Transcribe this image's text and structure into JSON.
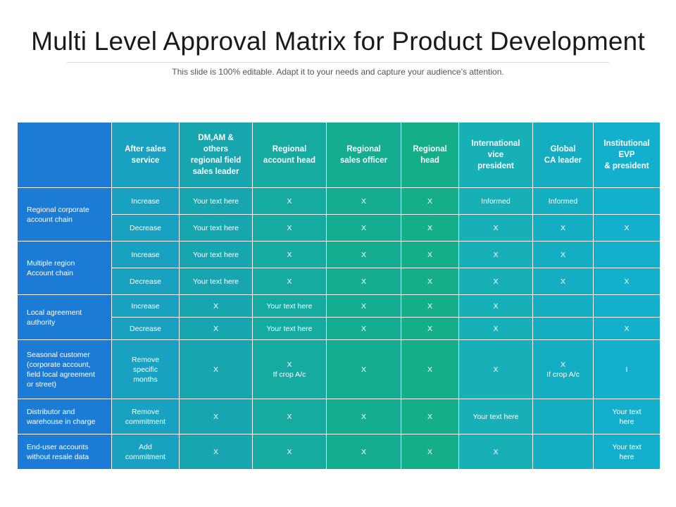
{
  "title": "Multi Level Approval Matrix for Product Development",
  "subtitle": "This slide is 100% editable. Adapt it to your needs and capture your audience’s attention.",
  "colors": {
    "header_row_label": "#1c7cd5",
    "col1": "#18a1c0",
    "col2": "#17a6b0",
    "col3": "#15aba1",
    "col4": "#14ad91",
    "col5": "#14af88",
    "col6": "#17b0b6",
    "col7": "#14aec3",
    "col8": "#12b0cd"
  },
  "table": {
    "corner": "",
    "columns": [
      [
        "After sales",
        "service"
      ],
      [
        "DM,AM &",
        "others",
        "regional field",
        "sales leader"
      ],
      [
        "Regional",
        "account head"
      ],
      [
        "Regional",
        "sales officer"
      ],
      [
        "Regional",
        "head"
      ],
      [
        "International",
        "vice",
        "president"
      ],
      [
        "Global",
        "CA leader"
      ],
      [
        "Institutional",
        "EVP",
        "& president"
      ]
    ],
    "groups": [
      {
        "label": [
          "Regional corporate",
          "account chain"
        ],
        "rows": [
          [
            "Increase",
            "Your text here",
            "X",
            "X",
            "X",
            "Informed",
            "Informed",
            ""
          ],
          [
            "Decrease",
            "Your text here",
            "X",
            "X",
            "X",
            "X",
            "X",
            "X"
          ]
        ]
      },
      {
        "label": [
          "Multiple region",
          "Account chain"
        ],
        "rows": [
          [
            "Increase",
            "Your text here",
            "X",
            "X",
            "X",
            "X",
            "X",
            ""
          ],
          [
            "Decrease",
            "Your text here",
            "X",
            "X",
            "X",
            "X",
            "X",
            "X"
          ]
        ]
      },
      {
        "label": [
          "Local agreement",
          "authority"
        ],
        "rows": [
          [
            "Increase",
            "X",
            "Your text here",
            "X",
            "X",
            "X",
            "",
            ""
          ],
          [
            "Decrease",
            "X",
            "Your text here",
            "X",
            "X",
            "X",
            "",
            "X"
          ]
        ]
      },
      {
        "label": [
          "Seasonal customer",
          "(corporate account,",
          "field local agreement",
          "or street)"
        ],
        "rows": [
          [
            [
              "Remove",
              "specific",
              "months"
            ],
            "X",
            [
              "X",
              "If crop A/c"
            ],
            "X",
            "X",
            "X",
            [
              "X",
              "If crop A/c"
            ],
            "I"
          ]
        ]
      },
      {
        "label": [
          "Distributor  and",
          "warehouse in charge"
        ],
        "rows": [
          [
            [
              "Remove",
              "commitment"
            ],
            "X",
            "X",
            "X",
            "X",
            "Your text here",
            "",
            [
              "Your text",
              "here"
            ]
          ]
        ]
      },
      {
        "label": [
          "End-user accounts",
          "without resale data"
        ],
        "rows": [
          [
            [
              "Add",
              "commitment"
            ],
            "X",
            "X",
            "X",
            "X",
            "X",
            "",
            [
              "Your text",
              "here"
            ]
          ]
        ]
      }
    ]
  }
}
